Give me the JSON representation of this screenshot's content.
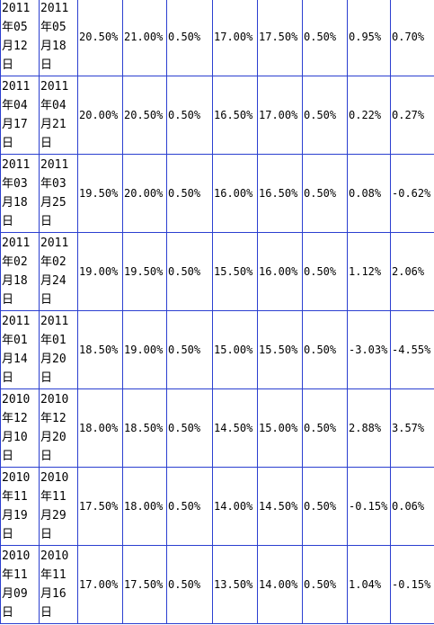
{
  "table": {
    "rows": [
      [
        "2011年05月12日",
        "2011年05月18日",
        "20.50%",
        "21.00%",
        "0.50%",
        "17.00%",
        "17.50%",
        "0.50%",
        "0.95%",
        "0.70%"
      ],
      [
        "2011年04月17日",
        "2011年04月21日",
        "20.00%",
        "20.50%",
        "0.50%",
        "16.50%",
        "17.00%",
        "0.50%",
        "0.22%",
        "0.27%"
      ],
      [
        "2011年03月18日",
        "2011年03月25日",
        "19.50%",
        "20.00%",
        "0.50%",
        "16.00%",
        "16.50%",
        "0.50%",
        "0.08%",
        "-0.62%"
      ],
      [
        "2011年02月18日",
        "2011年02月24日",
        "19.00%",
        "19.50%",
        "0.50%",
        "15.50%",
        "16.00%",
        "0.50%",
        "1.12%",
        "2.06%"
      ],
      [
        "2011年01月14日",
        "2011年01月20日",
        "18.50%",
        "19.00%",
        "0.50%",
        "15.00%",
        "15.50%",
        "0.50%",
        "-3.03%",
        "-4.55%"
      ],
      [
        "2010年12月10日",
        "2010年12月20日",
        "18.00%",
        "18.50%",
        "0.50%",
        "14.50%",
        "15.00%",
        "0.50%",
        "2.88%",
        "3.57%"
      ],
      [
        "2010年11月19日",
        "2010年11月29日",
        "17.50%",
        "18.00%",
        "0.50%",
        "14.00%",
        "14.50%",
        "0.50%",
        "-0.15%",
        "0.06%"
      ],
      [
        "2010年11月09日",
        "2010年11月16日",
        "17.00%",
        "17.50%",
        "0.50%",
        "13.50%",
        "14.00%",
        "0.50%",
        "1.04%",
        "-0.15%"
      ]
    ]
  }
}
